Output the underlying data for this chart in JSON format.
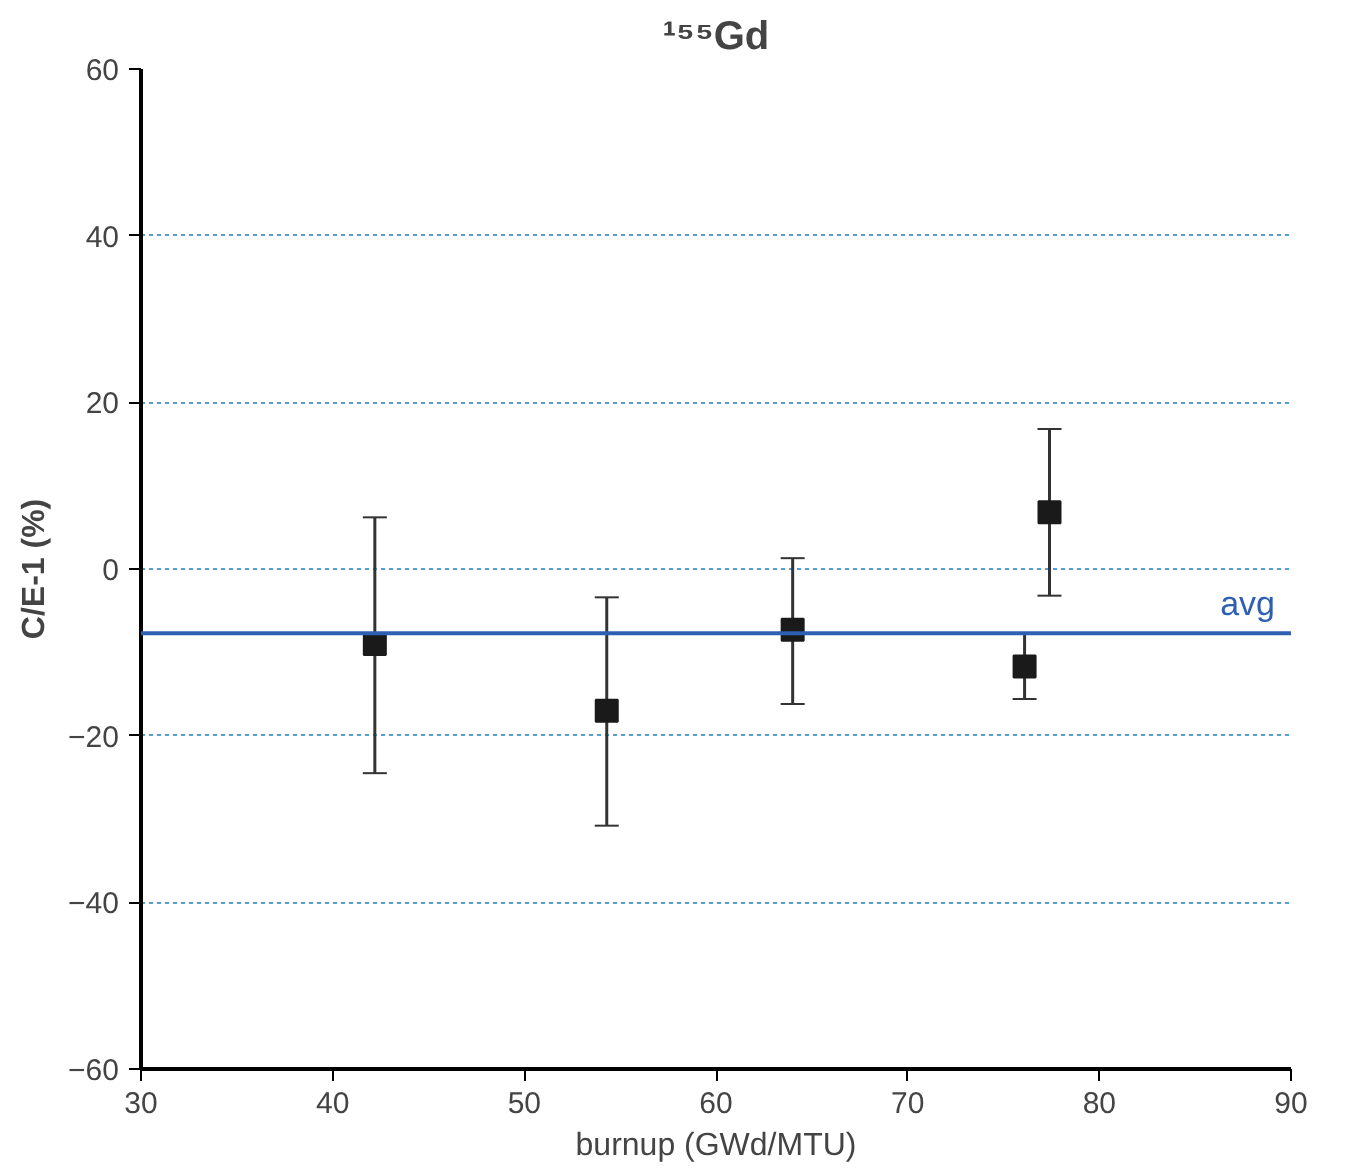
{
  "chart_data": {
    "type": "scatter",
    "title": "¹⁵⁵Gd",
    "xlabel": "burnup (GWd/MTU)",
    "ylabel": "C/E-1 (%)",
    "x": [
      42.2,
      54.3,
      64.0,
      76.1,
      77.4
    ],
    "values": [
      -9.0,
      -17.0,
      -7.3,
      -11.7,
      6.8
    ],
    "errors": [
      [
        -24.5,
        6.2
      ],
      [
        -30.8,
        -3.4
      ],
      [
        -16.2,
        1.3
      ],
      [
        -15.6,
        -7.7
      ],
      [
        -3.2,
        16.8
      ]
    ],
    "color": "#1a1a1a",
    "marker": "square",
    "xlim": [
      30,
      90
    ],
    "xticks": [
      30,
      40,
      50,
      60,
      70,
      80,
      90
    ],
    "ylim": [
      -60,
      60
    ],
    "yticks": [
      -60,
      -40,
      -20,
      0,
      20,
      40,
      60
    ],
    "grid": "y",
    "ref_lines": [
      {
        "axis": "y",
        "value": -7.7,
        "label": "avg",
        "color": "#2f5fb3"
      }
    ]
  }
}
